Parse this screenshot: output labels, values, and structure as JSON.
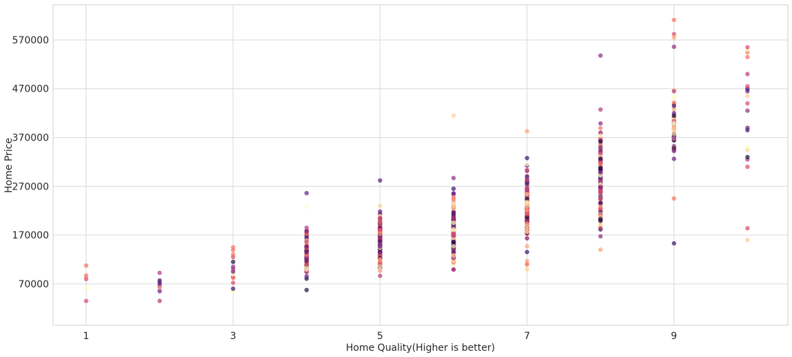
{
  "chart_data": {
    "type": "scatter",
    "title": "",
    "xlabel": "Home Quality(Higher is better)",
    "ylabel": "Home Price",
    "xlim": [
      0.55,
      10.55
    ],
    "ylim": [
      -15000,
      642000
    ],
    "xticks": [
      1,
      3,
      5,
      7,
      9
    ],
    "yticks": [
      70000,
      170000,
      270000,
      370000,
      470000,
      570000
    ],
    "grid": true,
    "legend": "none",
    "palette": [
      "#1c1044",
      "#3b0f70",
      "#641a80",
      "#8c2981",
      "#b73779",
      "#de4968",
      "#f7705c",
      "#fe9f6d",
      "#fecf92",
      "#fcfdbf"
    ],
    "series": [
      {
        "x": 1,
        "values": [
          34900,
          61000,
          87000,
          79900,
          107500
        ]
      },
      {
        "x": 2,
        "values": [
          35000,
          55000,
          67000,
          62000,
          77000,
          72000,
          92500
        ]
      },
      {
        "x": 3,
        "values": [
          55000,
          60000,
          72000,
          82000,
          85000,
          89000,
          95000,
          100000,
          105000,
          115000,
          125000,
          130000,
          139000,
          145000
        ]
      },
      {
        "x": 4,
        "min": 55000,
        "max": 200000,
        "count": 120,
        "outliers": [
          256000,
          228000,
          185000
        ]
      },
      {
        "x": 5,
        "min": 65000,
        "max": 240000,
        "count": 220,
        "outliers": [
          282000,
          230000
        ]
      },
      {
        "x": 6,
        "min": 80000,
        "max": 275000,
        "count": 220,
        "outliers": [
          415000,
          287000,
          265000
        ]
      },
      {
        "x": 7,
        "min": 110000,
        "max": 345000,
        "count": 210,
        "outliers": [
          383000,
          100000
        ]
      },
      {
        "x": 8,
        "min": 125000,
        "max": 440000,
        "count": 150,
        "outliers": [
          538000,
          140000
        ]
      },
      {
        "x": 9,
        "min": 275000,
        "max": 500000,
        "count": 45,
        "outliers": [
          611000,
          582000,
          575000,
          556000,
          465000,
          245000,
          153000
        ]
      },
      {
        "x": 10,
        "values": [
          160000,
          184000,
          310000,
          325000,
          330000,
          345000,
          350000,
          385000,
          390000,
          425000,
          440000,
          455000,
          465000,
          470000,
          475000,
          500000,
          535000,
          545000,
          550000,
          555000
        ]
      }
    ]
  }
}
